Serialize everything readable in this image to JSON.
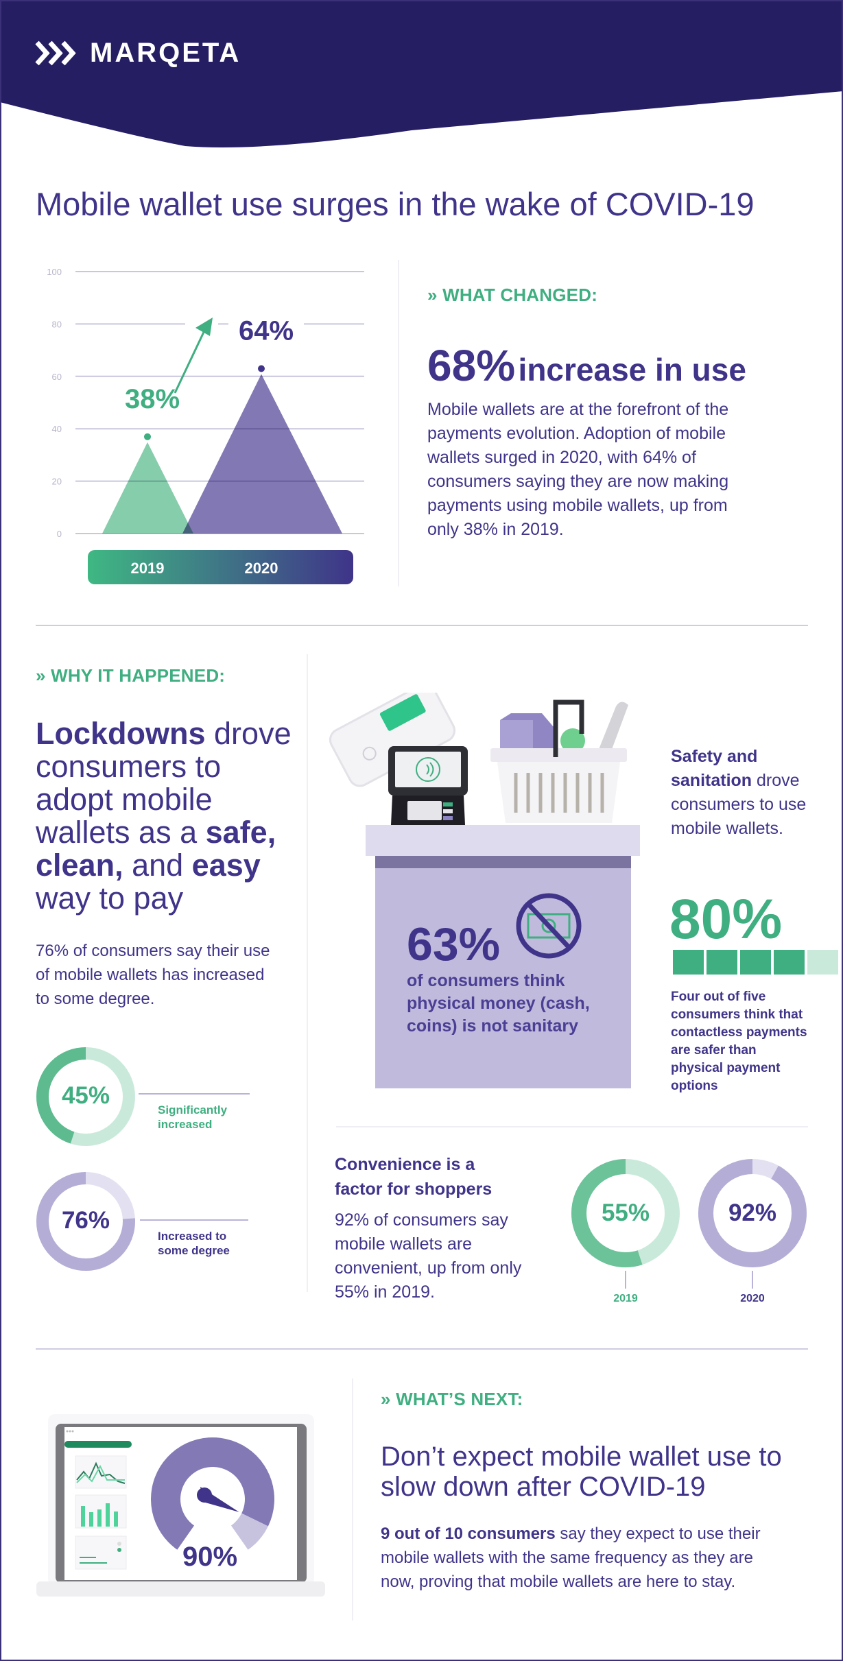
{
  "brand": {
    "name": "MARQETA",
    "header_color": "#251e62"
  },
  "colors": {
    "purple": "#3f3489",
    "green": "#3fae80",
    "light_green": "#c9eadb",
    "light_purple": "#dedbee",
    "mid_purple": "#b9b3da"
  },
  "title": "Mobile wallet use surges in the wake of COVID-19",
  "chart_data": {
    "type": "bar",
    "mark_shape": "triangle",
    "categories": [
      "2019",
      "2020"
    ],
    "values": [
      38,
      64
    ],
    "data_labels": [
      "38%",
      "64%"
    ],
    "ylim": [
      0,
      100
    ],
    "yticks": [
      "0",
      "20",
      "40",
      "60",
      "80",
      "100"
    ],
    "grid": true,
    "colors": [
      "#7fcaa6",
      "#7b71b0"
    ],
    "annotation": "arrow-up-from-2019-to-2020"
  },
  "what_changed": {
    "kicker": "» WHAT CHANGED:",
    "stat": "68%",
    "stat_label": "increase in use",
    "body": "Mobile wallets are at the forefront of the payments evolution. Adoption of mobile wallets surged in 2020, with 64% of consumers saying they are now making payments using mobile wallets, up from only 38% in 2019."
  },
  "why": {
    "kicker": "» WHY IT HAPPENED:",
    "headline": {
      "b1": "Lockdowns",
      "t1": " drove consumers to adopt mobile wallets as a ",
      "b2": "safe,",
      "t2": " ",
      "b3": "clean,",
      "t3": " and ",
      "b4": "easy",
      "t4": " way to pay"
    },
    "body": "76% of consumers say their use of mobile wallets has increased to some degree.",
    "donuts": [
      {
        "value": 45,
        "label": "45%",
        "caption": "Significantly increased",
        "color": "#5dbb8f",
        "track": "#c9eadb"
      },
      {
        "value": 76,
        "label": "76%",
        "caption": "Increased to some degree",
        "color": "#b4aed6",
        "track": "#e3e0f1"
      }
    ]
  },
  "sanitation": {
    "stat": "63%",
    "stat_text": "of consumers think physical money (cash, coins) is not sanitary",
    "icon": "no-cash-icon",
    "side_b": "Safety and sanitation",
    "side_t": " drove consumers to use mobile wallets.",
    "big_stat": "80%",
    "bars_filled": 4,
    "bars_total": 5,
    "big_text": "Four out of five consumers think that contactless payments are safer than physical payment options"
  },
  "convenience": {
    "heading": "Convenience is a factor for shoppers",
    "body": "92% of consumers say mobile wallets are convenient, up from only 55% in 2019.",
    "donuts": [
      {
        "value": 55,
        "label": "55%",
        "year": "2019",
        "color": "#6cc299",
        "track": "#c9eadb"
      },
      {
        "value": 92,
        "label": "92%",
        "year": "2020",
        "color": "#b4aed6",
        "track": "#e3e0f1"
      }
    ]
  },
  "next": {
    "kicker": "» WHAT’S NEXT:",
    "headline": "Don’t expect mobile wallet use to slow down after COVID-19",
    "body_b": "9 out of 10 consumers",
    "body_t": " say they expect to use their mobile wallets with the same frequency as they are now, proving that mobile wallets are here to stay.",
    "gauge_value": 90,
    "gauge_label": "90%"
  }
}
